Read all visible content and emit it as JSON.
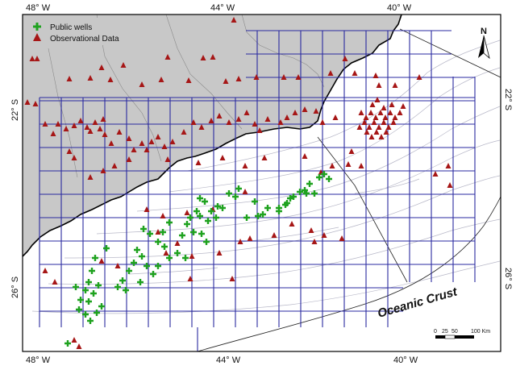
{
  "map": {
    "region_label": "Oceanic Crust",
    "north_label": "N",
    "top_ticks": [
      "48° W",
      "44° W",
      "40° W"
    ],
    "bottom_ticks": [
      "48° W",
      "44° W",
      "40° W"
    ],
    "left_ticks": [
      "22° S",
      "26° S"
    ],
    "right_ticks": [
      "22° S",
      "26° S"
    ],
    "scale": {
      "labels": [
        "0",
        "25",
        "50",
        "100 Km"
      ]
    },
    "colors": {
      "land": "#c8c8c8",
      "ocean": "#ffffff",
      "grid": "#2a2aa0",
      "coast": "#000000",
      "bathymetry": "#b8b8c8",
      "observations": "#a61616",
      "wells": "#1fa21f"
    }
  },
  "legend": {
    "items": [
      {
        "label": "Public wells",
        "symbol": "green-cross"
      },
      {
        "label": "Observational Data",
        "symbol": "red-triangle"
      }
    ]
  }
}
